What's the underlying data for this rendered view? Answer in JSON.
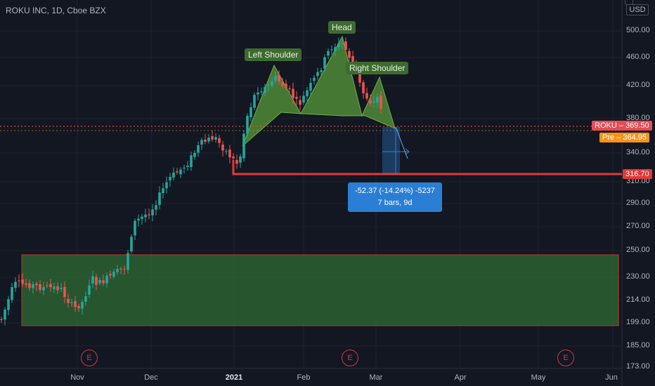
{
  "title": "ROKU INC, 1D, Cboe BZX",
  "currency": "USD",
  "price_scale": [
    "500.00",
    "460.00",
    "420.00",
    "380.00",
    "340.00",
    "310.00",
    "290.00",
    "270.00",
    "250.00",
    "230.00",
    "214.00",
    "199.00",
    "185.00",
    "173.00"
  ],
  "time_axis": [
    "Nov",
    "Dec",
    "2021",
    "Feb",
    "Mar",
    "Apr",
    "May",
    "Jun"
  ],
  "tags": {
    "roku": "ROKU",
    "roku_price": "369.50",
    "pre": "Pre",
    "pre_price": "364.95",
    "target": "316.70"
  },
  "annotations": {
    "left_shoulder": "Left Shoulder",
    "head": "Head",
    "right_shoulder": "Right Shoulder"
  },
  "measure": {
    "line1": "-52.37 (-14.24%) -5237",
    "line2": "7 bars, 9d"
  },
  "earnings_marker": "E",
  "colors": {
    "background": "#131722",
    "up": "#26a69a",
    "down": "#ef5350",
    "zone_fill": "#2e6b33",
    "pattern_fill": "#4f8a35",
    "target_line": "#e03a3a",
    "measure_box": "#2a7fd4",
    "pre_tag": "#f7931a"
  }
}
